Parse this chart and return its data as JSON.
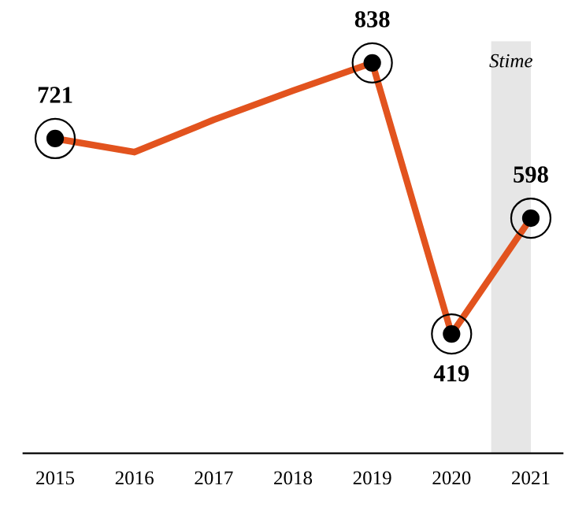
{
  "chart_data": {
    "type": "line",
    "x": [
      2015,
      2016,
      2017,
      2018,
      2019,
      2020,
      2021
    ],
    "series": [
      {
        "color": "#e2531e",
        "values": [
          721,
          700,
          750,
          795,
          838,
          419,
          598
        ],
        "value_labels": [
          "721",
          null,
          null,
          null,
          "838",
          "419",
          "598"
        ]
      }
    ],
    "xlim": [
      2014.6,
      2021.4
    ],
    "xticks": [
      2015,
      2016,
      2017,
      2018,
      2019,
      2020,
      2021
    ],
    "tick_labels": "x",
    "marker": "circle",
    "bands": [
      {
        "axis": "x",
        "from": 2020.5,
        "to": 2021,
        "label": "Stime",
        "color": "#e6e6e6"
      }
    ],
    "grid": false
  }
}
